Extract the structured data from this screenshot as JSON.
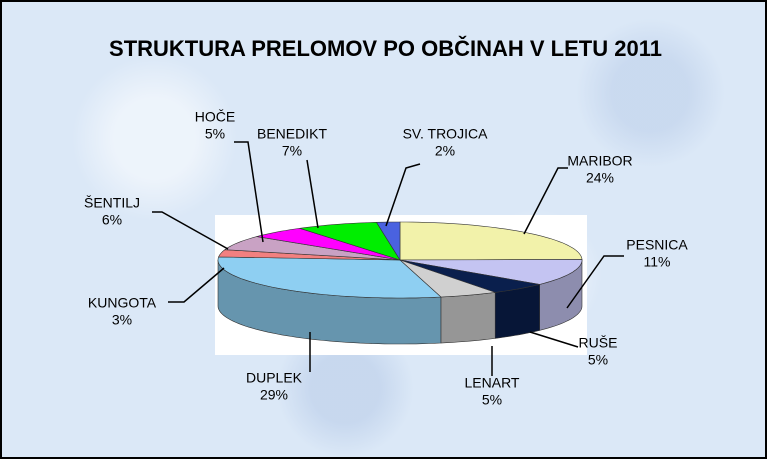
{
  "chart_data": {
    "type": "pie",
    "title": "STRUKTURA PRELOMOV PO OBČINAH V LETU 2011",
    "categories": [
      "MARIBOR",
      "PESNICA",
      "RUŠE",
      "LENART",
      "DUPLEK",
      "KUNGOTA",
      "ŠENTILJ",
      "HOČE",
      "BENEDIKT",
      "SV. TROJICA"
    ],
    "values": [
      24,
      11,
      5,
      5,
      29,
      3,
      6,
      5,
      7,
      2
    ],
    "value_labels": [
      "24%",
      "11%",
      "5%",
      "5%",
      "29%",
      "3%",
      "6%",
      "5%",
      "7%",
      "2%"
    ],
    "colors": [
      "#f2f2aa",
      "#c4c4f2",
      "#0a1f4d",
      "#d0d0d0",
      "#8ecff2",
      "#f28080",
      "#c9a2c4",
      "#ff00ff",
      "#00ee00",
      "#4a62e0"
    ]
  }
}
